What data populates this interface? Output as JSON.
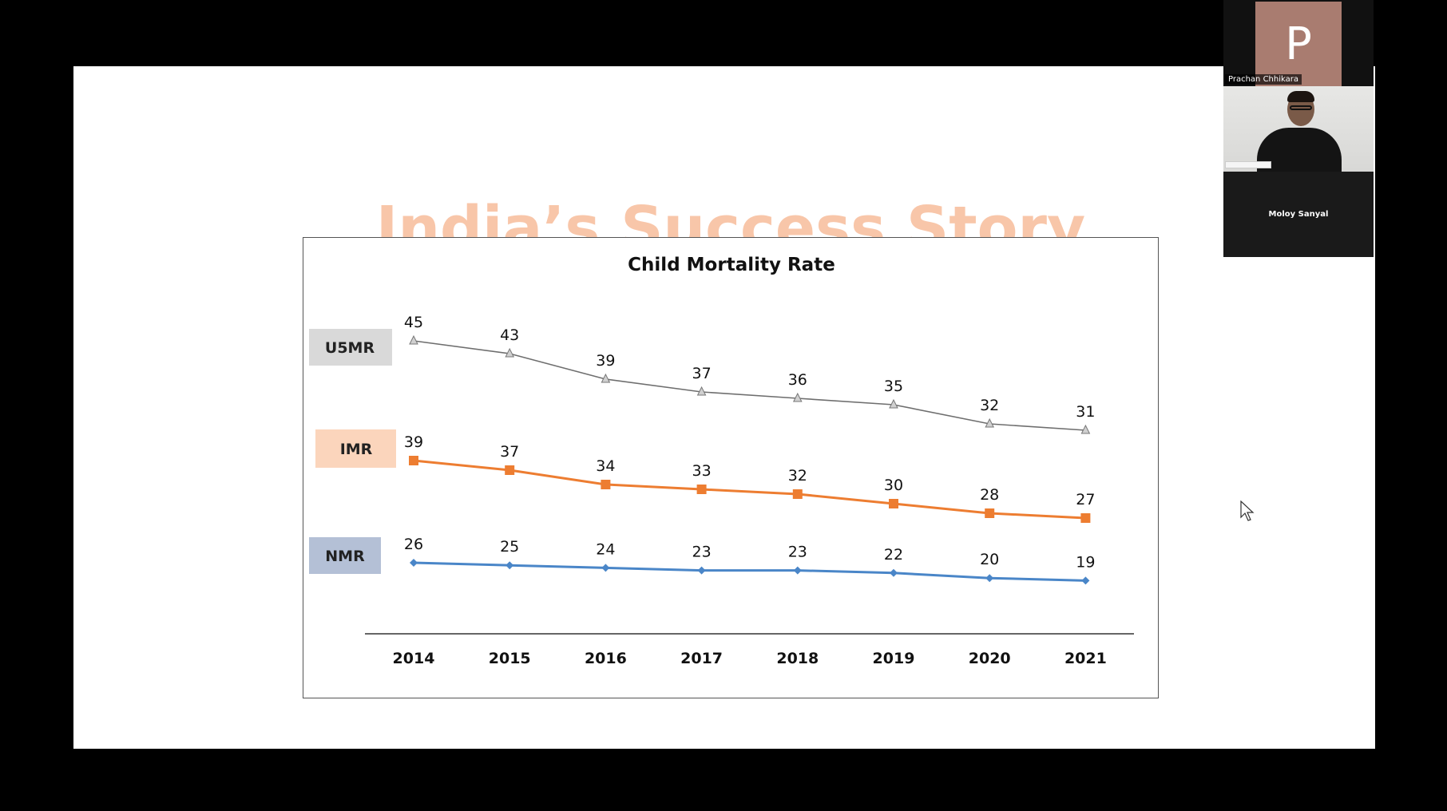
{
  "slide": {
    "title": "India’s Success Story"
  },
  "chart_data": {
    "type": "line",
    "title": "Child Mortality Rate",
    "categories": [
      "2014",
      "2015",
      "2016",
      "2017",
      "2018",
      "2019",
      "2020",
      "2021"
    ],
    "series": [
      {
        "name": "U5MR",
        "values": [
          45,
          43,
          39,
          37,
          36,
          35,
          32,
          31
        ],
        "color": "#6e6e6e",
        "marker": "triangle",
        "label_bg": "#d9d9d9"
      },
      {
        "name": "IMR",
        "values": [
          39,
          37,
          34,
          33,
          32,
          30,
          28,
          27
        ],
        "color": "#ed7d31",
        "marker": "square",
        "label_bg": "#fbd5bc"
      },
      {
        "name": "NMR",
        "values": [
          26,
          25,
          24,
          23,
          23,
          22,
          20,
          19
        ],
        "color": "#4a86c8",
        "marker": "diamond",
        "label_bg": "#b4c0d6"
      }
    ],
    "grid": false,
    "legend": "left"
  },
  "participants": {
    "presenter_initial": "P",
    "presenter_name": "Prachan Chhikara",
    "video_name": "Moloy Sanyal"
  },
  "colors": {
    "title": "#f8c6a9",
    "background": "#000000",
    "slide": "#ffffff"
  }
}
